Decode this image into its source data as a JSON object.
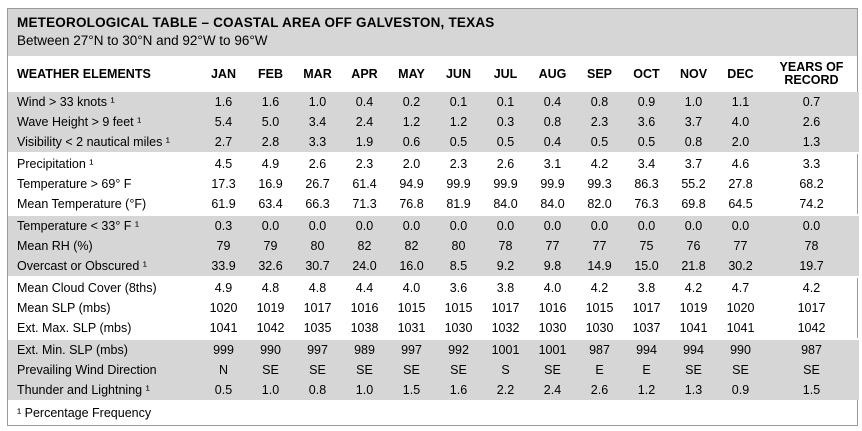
{
  "title": "METEOROLOGICAL TABLE – COASTAL AREA OFF GALVESTON, TEXAS",
  "subtitle": "Between 27°N to 30°N and 92°W to 96°W",
  "header": [
    "WEATHER ELEMENTS",
    "JAN",
    "FEB",
    "MAR",
    "APR",
    "MAY",
    "JUN",
    "JUL",
    "AUG",
    "SEP",
    "OCT",
    "NOV",
    "DEC",
    "YEARS OF RECORD"
  ],
  "rows": [
    {
      "label": "Wind > 33 knots ¹",
      "values": [
        "1.6",
        "1.6",
        "1.0",
        "0.4",
        "0.2",
        "0.1",
        "0.1",
        "0.4",
        "0.8",
        "0.9",
        "1.0",
        "1.1",
        "0.7"
      ]
    },
    {
      "label": "Wave Height > 9 feet ¹",
      "values": [
        "5.4",
        "5.0",
        "3.4",
        "2.4",
        "1.2",
        "1.2",
        "0.3",
        "0.8",
        "2.3",
        "3.6",
        "3.7",
        "4.0",
        "2.6"
      ]
    },
    {
      "label": "Visibility < 2 nautical miles ¹",
      "values": [
        "2.7",
        "2.8",
        "3.3",
        "1.9",
        "0.6",
        "0.5",
        "0.5",
        "0.4",
        "0.5",
        "0.5",
        "0.8",
        "2.0",
        "1.3"
      ]
    },
    {
      "label": "Precipitation ¹",
      "values": [
        "4.5",
        "4.9",
        "2.6",
        "2.3",
        "2.0",
        "2.3",
        "2.6",
        "3.1",
        "4.2",
        "3.4",
        "3.7",
        "4.6",
        "3.3"
      ]
    },
    {
      "label": "Temperature > 69° F",
      "values": [
        "17.3",
        "16.9",
        "26.7",
        "61.4",
        "94.9",
        "99.9",
        "99.9",
        "99.9",
        "99.3",
        "86.3",
        "55.2",
        "27.8",
        "68.2"
      ]
    },
    {
      "label": "Mean Temperature (°F)",
      "values": [
        "61.9",
        "63.4",
        "66.3",
        "71.3",
        "76.8",
        "81.9",
        "84.0",
        "84.0",
        "82.0",
        "76.3",
        "69.8",
        "64.5",
        "74.2"
      ]
    },
    {
      "label": "Temperature < 33° F ¹",
      "values": [
        "0.3",
        "0.0",
        "0.0",
        "0.0",
        "0.0",
        "0.0",
        "0.0",
        "0.0",
        "0.0",
        "0.0",
        "0.0",
        "0.0",
        "0.0"
      ]
    },
    {
      "label": "Mean RH (%)",
      "values": [
        "79",
        "79",
        "80",
        "82",
        "82",
        "80",
        "78",
        "77",
        "77",
        "75",
        "76",
        "77",
        "78"
      ]
    },
    {
      "label": "Overcast or Obscured ¹",
      "values": [
        "33.9",
        "32.6",
        "30.7",
        "24.0",
        "16.0",
        "8.5",
        "9.2",
        "9.8",
        "14.9",
        "15.0",
        "21.8",
        "30.2",
        "19.7"
      ]
    },
    {
      "label": "Mean Cloud Cover (8ths)",
      "values": [
        "4.9",
        "4.8",
        "4.8",
        "4.4",
        "4.0",
        "3.6",
        "3.8",
        "4.0",
        "4.2",
        "3.8",
        "4.2",
        "4.7",
        "4.2"
      ]
    },
    {
      "label": "Mean SLP (mbs)",
      "values": [
        "1020",
        "1019",
        "1017",
        "1016",
        "1015",
        "1015",
        "1017",
        "1016",
        "1015",
        "1017",
        "1019",
        "1020",
        "1017"
      ]
    },
    {
      "label": "Ext. Max. SLP (mbs)",
      "values": [
        "1041",
        "1042",
        "1035",
        "1038",
        "1031",
        "1030",
        "1032",
        "1030",
        "1030",
        "1037",
        "1041",
        "1041",
        "1042"
      ]
    },
    {
      "label": "Ext. Min. SLP (mbs)",
      "values": [
        "999",
        "990",
        "997",
        "989",
        "997",
        "992",
        "1001",
        "1001",
        "987",
        "994",
        "994",
        "990",
        "987"
      ]
    },
    {
      "label": "Prevailing Wind Direction",
      "values": [
        "N",
        "SE",
        "SE",
        "SE",
        "SE",
        "SE",
        "S",
        "SE",
        "E",
        "E",
        "SE",
        "SE",
        "SE"
      ]
    },
    {
      "label": "Thunder and Lightning ¹",
      "values": [
        "0.5",
        "1.0",
        "0.8",
        "1.0",
        "1.5",
        "1.6",
        "2.2",
        "2.4",
        "2.6",
        "1.2",
        "1.3",
        "0.9",
        "1.5"
      ]
    }
  ],
  "footnote": "¹ Percentage Frequency",
  "colors": {
    "shade": "#d6d6d6",
    "border": "#9a9a9a"
  }
}
